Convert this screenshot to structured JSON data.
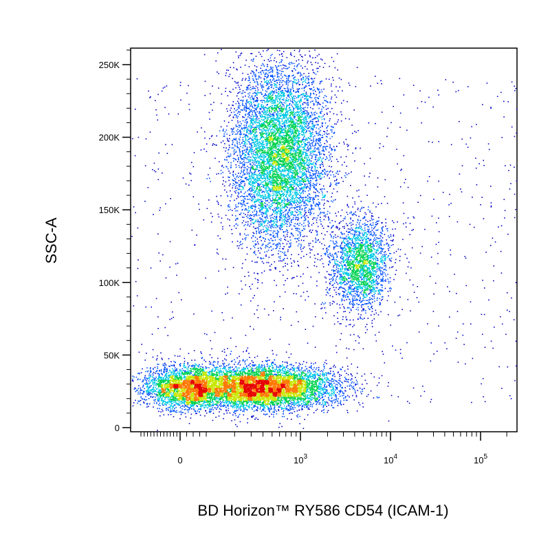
{
  "chart_data": {
    "type": "scatter",
    "title": "",
    "xlabel": "BD Horizon™ RY586 CD54 (ICAM-1)",
    "ylabel": "SSC-A",
    "x_scale": "biexponential",
    "y_scale": "linear",
    "ylim": [
      0,
      262144
    ],
    "y_ticks": [
      {
        "value": 0,
        "label": "0"
      },
      {
        "value": 50000,
        "label": "50K"
      },
      {
        "value": 100000,
        "label": "100K"
      },
      {
        "value": 150000,
        "label": "150K"
      },
      {
        "value": 200000,
        "label": "200K"
      },
      {
        "value": 250000,
        "label": "250K"
      }
    ],
    "x_ticks": [
      {
        "value": 0,
        "label": "0"
      },
      {
        "value": 1000,
        "label": "10",
        "exponent": "3"
      },
      {
        "value": 10000,
        "label": "10",
        "exponent": "4"
      },
      {
        "value": 100000,
        "label": "10",
        "exponent": "5"
      }
    ],
    "grid": false,
    "legend": "none",
    "density_colors": [
      "#0000c8",
      "#0050ff",
      "#00c8e6",
      "#00d250",
      "#c8e600",
      "#ff7800",
      "#e60000"
    ],
    "populations": [
      {
        "center_x": 300,
        "center_ssc": 28000,
        "spread_x_log10": 0.45,
        "spread_ssc": 7000,
        "relative_density": "highest"
      },
      {
        "center_x": 650,
        "center_ssc": 190000,
        "spread_x_log10": 0.25,
        "spread_ssc": 30000,
        "relative_density": "high"
      },
      {
        "center_x": 4500,
        "center_ssc": 112000,
        "spread_x_log10": 0.15,
        "spread_ssc": 15000,
        "relative_density": "medium"
      }
    ]
  }
}
